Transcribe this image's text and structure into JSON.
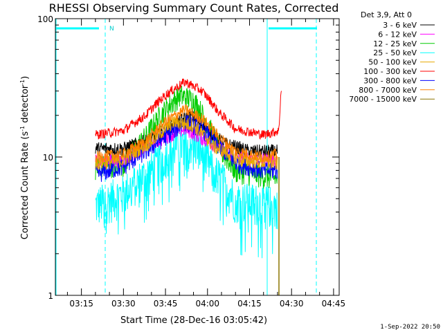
{
  "chart_data": {
    "type": "line",
    "title": "RHESSI Observing Summary Count Rates, Corrected",
    "xlabel": "Start Time (28-Dec-16 03:05:42)",
    "ylabel_main": "Corrected Count Rate (s",
    "ylabel_sup1": "-1",
    "ylabel_mid": " detector",
    "ylabel_sup2": "-1",
    "ylabel_end": ")",
    "y_scale": "log",
    "ylim": [
      1,
      100
    ],
    "y_ticks": [
      {
        "value": 1,
        "label": "1"
      },
      {
        "value": 10,
        "label": "10"
      },
      {
        "value": 100,
        "label": "100"
      }
    ],
    "x_range": [
      "03:05:42",
      "04:47:00"
    ],
    "x_ticks": [
      {
        "time": "03:15",
        "label": "03:15"
      },
      {
        "time": "03:30",
        "label": "03:30"
      },
      {
        "time": "03:45",
        "label": "03:45"
      },
      {
        "time": "04:00",
        "label": "04:00"
      },
      {
        "time": "04:15",
        "label": "04:15"
      },
      {
        "time": "04:30",
        "label": "04:30"
      },
      {
        "time": "04:45",
        "label": "04:45"
      }
    ],
    "legend_header": "Det 3,9, Att 0",
    "legend_position": "right",
    "series": [
      {
        "name": "3 - 6 keV",
        "color": "#000000",
        "points": [
          [
            "03:20:00",
            11.5
          ],
          [
            "03:30:00",
            11.5
          ],
          [
            "03:40:00",
            13.5
          ],
          [
            "03:48:00",
            17
          ],
          [
            "03:54:00",
            20
          ],
          [
            "04:00:00",
            15.5
          ],
          [
            "04:06:00",
            12.5
          ],
          [
            "04:15:00",
            11
          ],
          [
            "04:25:00",
            11
          ]
        ]
      },
      {
        "name": "6 - 12 keV",
        "color": "#ff00ff",
        "points": [
          [
            "03:20:00",
            9.5
          ],
          [
            "03:30:00",
            9.5
          ],
          [
            "03:42:00",
            13
          ],
          [
            "03:52:00",
            16
          ],
          [
            "04:00:00",
            13
          ],
          [
            "04:10:00",
            10
          ],
          [
            "04:25:00",
            9.5
          ]
        ]
      },
      {
        "name": "12 - 25 keV",
        "color": "#00cc00",
        "points": [
          [
            "03:20:00",
            8.5
          ],
          [
            "03:30:00",
            9
          ],
          [
            "03:38:00",
            14
          ],
          [
            "03:45:00",
            22
          ],
          [
            "03:50:00",
            28
          ],
          [
            "03:55:00",
            26
          ],
          [
            "04:00:00",
            17
          ],
          [
            "04:05:00",
            11
          ],
          [
            "04:10:00",
            8
          ],
          [
            "04:25:00",
            7
          ]
        ]
      },
      {
        "name": "25 - 50 keV",
        "color": "#00ffff",
        "points": [
          [
            "03:20:00",
            4.5
          ],
          [
            "03:30:00",
            5.5
          ],
          [
            "03:40:00",
            8
          ],
          [
            "03:48:00",
            12
          ],
          [
            "03:55:00",
            13
          ],
          [
            "04:02:00",
            8
          ],
          [
            "04:10:00",
            5
          ],
          [
            "04:25:00",
            4.5
          ]
        ]
      },
      {
        "name": "50 - 100 keV",
        "color": "#e8a800",
        "points": [
          [
            "03:20:00",
            9
          ],
          [
            "03:30:00",
            9.5
          ],
          [
            "03:40:00",
            13
          ],
          [
            "03:48:00",
            18
          ],
          [
            "03:55:00",
            17
          ],
          [
            "04:02:00",
            12
          ],
          [
            "04:12:00",
            9.5
          ],
          [
            "04:25:00",
            9
          ]
        ]
      },
      {
        "name": "100 - 300 keV",
        "color": "#ff0000",
        "points": [
          [
            "03:20:00",
            14.5
          ],
          [
            "03:30:00",
            15.5
          ],
          [
            "03:38:00",
            20
          ],
          [
            "03:45:00",
            28
          ],
          [
            "03:52:00",
            35
          ],
          [
            "03:58:00",
            30
          ],
          [
            "04:04:00",
            21
          ],
          [
            "04:10:00",
            16
          ],
          [
            "04:20:00",
            14.5
          ],
          [
            "04:25:30",
            15.5
          ],
          [
            "04:26:30",
            34
          ]
        ]
      },
      {
        "name": "300 - 800 keV",
        "color": "#0000ff",
        "points": [
          [
            "03:20:00",
            7.5
          ],
          [
            "03:30:00",
            8.5
          ],
          [
            "03:38:00",
            11
          ],
          [
            "03:45:00",
            14
          ],
          [
            "03:52:00",
            18
          ],
          [
            "03:58:00",
            16
          ],
          [
            "04:04:00",
            12
          ],
          [
            "04:10:00",
            9
          ],
          [
            "04:20:00",
            8
          ],
          [
            "04:25:00",
            8
          ]
        ]
      },
      {
        "name": "800 - 7000 keV",
        "color": "#ff8000",
        "points": [
          [
            "03:20:00",
            10
          ],
          [
            "03:30:00",
            10.5
          ],
          [
            "03:38:00",
            13
          ],
          [
            "03:45:00",
            18
          ],
          [
            "03:52:00",
            22
          ],
          [
            "03:58:00",
            19
          ],
          [
            "04:04:00",
            14
          ],
          [
            "04:10:00",
            11
          ],
          [
            "04:20:00",
            10
          ],
          [
            "04:25:00",
            10.5
          ]
        ]
      },
      {
        "name": "7000 - 15000 keV",
        "color": "#8b7500",
        "points": []
      }
    ],
    "annotations": [
      {
        "label": "N",
        "time": "03:24:00"
      }
    ]
  },
  "timestamp": "1-Sep-2022 20:50"
}
